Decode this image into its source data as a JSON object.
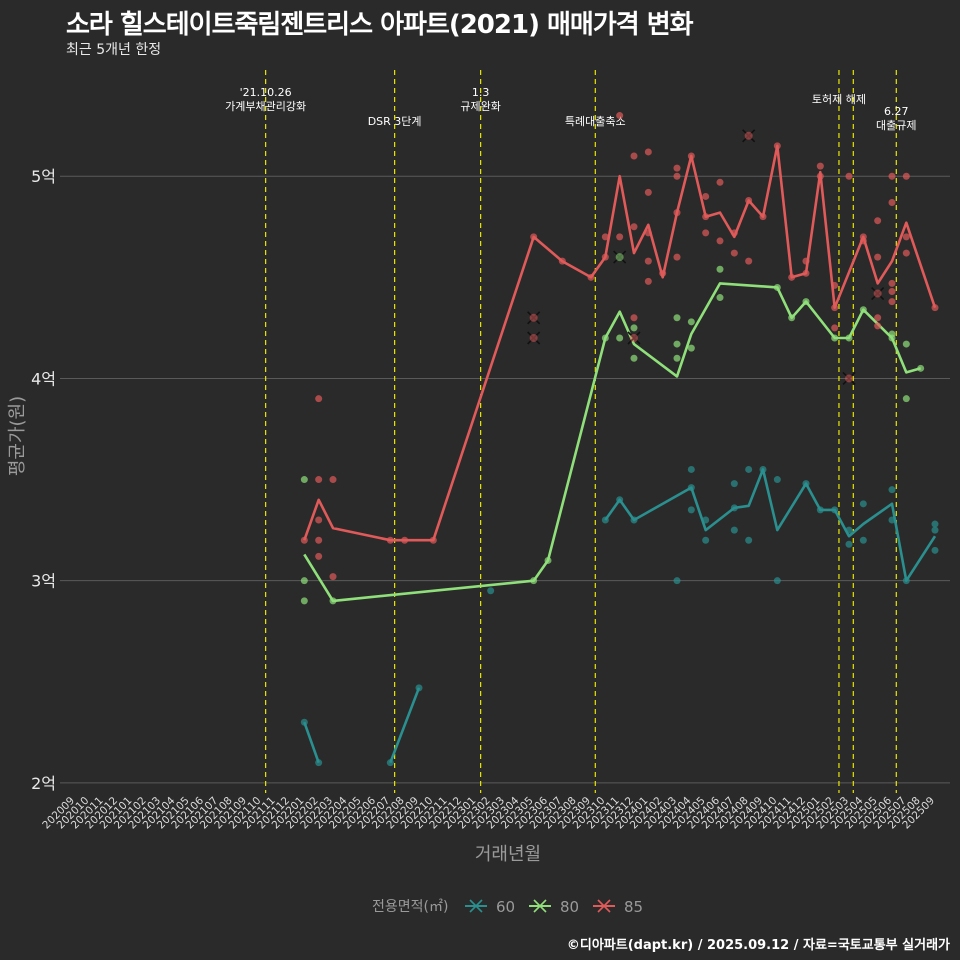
{
  "title": "소라 힐스테이트죽림젠트리스 아파트(2021) 매매가격 변화",
  "subtitle": "최근 5개년 한정",
  "caption": "©디아파트(dapt.kr) / 2025.09.12 / 자료=국토교통부 실거래가",
  "colors": {
    "background": "#2b2a2a",
    "grid": "#5a5a5a",
    "event_line": "#e8e800",
    "s60": "#2a8f8f",
    "s80": "#8fe07a",
    "s85": "#e05a5a"
  },
  "chart_data": {
    "type": "line",
    "xlabel": "거래년월",
    "ylabel": "평균가(원)",
    "x_categories": [
      "202009",
      "202010",
      "202011",
      "202012",
      "202101",
      "202102",
      "202103",
      "202104",
      "202105",
      "202106",
      "202107",
      "202108",
      "202109",
      "202110",
      "202111",
      "202112",
      "202201",
      "202202",
      "202203",
      "202204",
      "202205",
      "202206",
      "202207",
      "202208",
      "202209",
      "202210",
      "202211",
      "202212",
      "202301",
      "202302",
      "202303",
      "202304",
      "202305",
      "202306",
      "202307",
      "202308",
      "202309",
      "202310",
      "202311",
      "202312",
      "202401",
      "202402",
      "202403",
      "202404",
      "202405",
      "202406",
      "202407",
      "202408",
      "202409",
      "202410",
      "202411",
      "202412",
      "202501",
      "202502",
      "202503",
      "202504",
      "202505",
      "202506",
      "202507",
      "202508",
      "202509"
    ],
    "y_ticks": [
      {
        "value": 2.0,
        "label": "2억"
      },
      {
        "value": 3.0,
        "label": "3억"
      },
      {
        "value": 4.0,
        "label": "4억"
      },
      {
        "value": 5.0,
        "label": "5억"
      }
    ],
    "ylim": [
      1.95,
      5.55
    ],
    "legend": {
      "title": "전용면적(㎡)",
      "position": "bottom"
    },
    "events": [
      {
        "x": 13.3,
        "label": "'21.10.26\n가계부채관리강화",
        "row": 0
      },
      {
        "x": 22.3,
        "label": "DSR 3단계",
        "row": 1
      },
      {
        "x": 28.3,
        "label": "1.3\n규제완화",
        "row": 0
      },
      {
        "x": 36.3,
        "label": "특례대출축소",
        "row": 1
      },
      {
        "x": 53.3,
        "label": "토허제 해제",
        "row": 2
      },
      {
        "x": 54.3,
        "label": "",
        "row": 2
      },
      {
        "x": 57.3,
        "label": "6.27\n대출규제",
        "row": 3
      }
    ],
    "series": [
      {
        "name": "60",
        "line": [
          [
            16,
            2.3
          ],
          [
            17,
            2.1
          ],
          null,
          [
            22,
            2.1
          ],
          [
            24,
            2.47
          ],
          null,
          [
            37,
            3.3
          ],
          [
            38,
            3.4
          ],
          [
            39,
            3.3
          ],
          [
            43,
            3.46
          ],
          [
            44,
            3.25
          ],
          [
            46,
            3.36
          ],
          [
            47,
            3.37
          ],
          [
            48,
            3.55
          ],
          [
            49,
            3.25
          ],
          [
            51,
            3.48
          ],
          [
            52,
            3.35
          ],
          [
            53,
            3.35
          ],
          [
            54,
            3.22
          ],
          [
            55,
            3.28
          ],
          [
            57,
            3.38
          ],
          [
            58,
            3.0
          ],
          [
            60,
            3.22
          ]
        ],
        "points": [
          [
            16,
            2.3
          ],
          [
            17,
            2.1
          ],
          [
            22,
            2.1
          ],
          [
            24,
            2.47
          ],
          [
            29,
            2.95
          ],
          [
            37,
            3.3
          ],
          [
            38,
            3.4
          ],
          [
            39,
            3.3
          ],
          [
            42,
            3.0
          ],
          [
            43,
            3.46
          ],
          [
            43,
            3.35
          ],
          [
            43,
            3.55
          ],
          [
            44,
            3.3
          ],
          [
            44,
            3.2
          ],
          [
            46,
            3.36
          ],
          [
            46,
            3.25
          ],
          [
            46,
            3.48
          ],
          [
            47,
            3.55
          ],
          [
            47,
            3.2
          ],
          [
            48,
            3.55
          ],
          [
            49,
            3.5
          ],
          [
            49,
            3.0
          ],
          [
            51,
            3.48
          ],
          [
            52,
            3.35
          ],
          [
            53,
            3.35
          ],
          [
            54,
            3.25
          ],
          [
            54,
            3.18
          ],
          [
            55,
            3.2
          ],
          [
            55,
            3.38
          ],
          [
            57,
            3.45
          ],
          [
            57,
            3.3
          ],
          [
            58,
            3.0
          ],
          [
            60,
            3.28
          ],
          [
            60,
            3.15
          ],
          [
            60,
            3.25
          ]
        ],
        "cross": []
      },
      {
        "name": "80",
        "line": [
          [
            16,
            3.13
          ],
          [
            18,
            2.9
          ],
          [
            32,
            3.0
          ],
          [
            33,
            3.1
          ],
          [
            37,
            4.2
          ],
          [
            38,
            4.33
          ],
          [
            39,
            4.17
          ],
          [
            42,
            4.01
          ],
          [
            43,
            4.22
          ],
          [
            45,
            4.47
          ],
          [
            49,
            4.45
          ],
          [
            50,
            4.3
          ],
          [
            51,
            4.38
          ],
          [
            53,
            4.2
          ],
          [
            54,
            4.2
          ],
          [
            55,
            4.34
          ],
          [
            57,
            4.2
          ],
          [
            58,
            4.03
          ],
          [
            59,
            4.05
          ]
        ],
        "points": [
          [
            16,
            3.5
          ],
          [
            16,
            3.0
          ],
          [
            16,
            2.9
          ],
          [
            18,
            2.9
          ],
          [
            32,
            3.0
          ],
          [
            33,
            3.1
          ],
          [
            37,
            4.2
          ],
          [
            38,
            4.2
          ],
          [
            39,
            4.25
          ],
          [
            39,
            4.1
          ],
          [
            42,
            4.3
          ],
          [
            42,
            4.17
          ],
          [
            42,
            4.1
          ],
          [
            43,
            4.28
          ],
          [
            43,
            4.15
          ],
          [
            45,
            4.54
          ],
          [
            45,
            4.4
          ],
          [
            49,
            4.45
          ],
          [
            50,
            4.3
          ],
          [
            51,
            4.38
          ],
          [
            53,
            4.2
          ],
          [
            54,
            4.2
          ],
          [
            55,
            4.34
          ],
          [
            57,
            4.22
          ],
          [
            57,
            4.2
          ],
          [
            58,
            4.17
          ],
          [
            58,
            3.9
          ],
          [
            59,
            4.05
          ]
        ],
        "cross": [
          [
            38,
            4.6
          ]
        ]
      },
      {
        "name": "85",
        "line": [
          [
            16,
            3.2
          ],
          [
            17,
            3.4
          ],
          [
            18,
            3.26
          ],
          [
            22,
            3.2
          ],
          [
            23,
            3.2
          ],
          [
            25,
            3.2
          ],
          [
            32,
            4.7
          ],
          [
            34,
            4.58
          ],
          [
            36,
            4.5
          ],
          [
            37,
            4.6
          ],
          [
            38,
            5.0
          ],
          [
            39,
            4.62
          ],
          [
            40,
            4.76
          ],
          [
            41,
            4.5
          ],
          [
            42,
            4.82
          ],
          [
            43,
            5.1
          ],
          [
            44,
            4.8
          ],
          [
            45,
            4.82
          ],
          [
            46,
            4.7
          ],
          [
            47,
            4.88
          ],
          [
            48,
            4.8
          ],
          [
            49,
            5.15
          ],
          [
            50,
            4.5
          ],
          [
            51,
            4.52
          ],
          [
            52,
            5.02
          ],
          [
            53,
            4.35
          ],
          [
            55,
            4.7
          ],
          [
            56,
            4.47
          ],
          [
            57,
            4.58
          ],
          [
            58,
            4.77
          ],
          [
            60,
            4.35
          ]
        ],
        "points": [
          [
            16,
            3.2
          ],
          [
            17,
            3.9
          ],
          [
            17,
            3.5
          ],
          [
            17,
            3.3
          ],
          [
            17,
            3.2
          ],
          [
            17,
            3.12
          ],
          [
            18,
            3.5
          ],
          [
            18,
            3.02
          ],
          [
            22,
            3.2
          ],
          [
            23,
            3.2
          ],
          [
            25,
            3.2
          ],
          [
            32,
            4.7
          ],
          [
            34,
            4.58
          ],
          [
            36,
            4.5
          ],
          [
            37,
            4.6
          ],
          [
            37,
            4.7
          ],
          [
            38,
            4.7
          ],
          [
            38,
            5.3
          ],
          [
            39,
            4.75
          ],
          [
            39,
            5.1
          ],
          [
            39,
            4.3
          ],
          [
            40,
            5.12
          ],
          [
            40,
            4.92
          ],
          [
            40,
            4.72
          ],
          [
            40,
            4.58
          ],
          [
            40,
            4.48
          ],
          [
            41,
            4.52
          ],
          [
            42,
            5.04
          ],
          [
            42,
            5.0
          ],
          [
            42,
            4.6
          ],
          [
            42,
            4.82
          ],
          [
            43,
            5.1
          ],
          [
            44,
            4.9
          ],
          [
            44,
            4.8
          ],
          [
            44,
            4.72
          ],
          [
            45,
            4.97
          ],
          [
            45,
            4.68
          ],
          [
            46,
            4.72
          ],
          [
            46,
            4.62
          ],
          [
            47,
            4.88
          ],
          [
            47,
            4.58
          ],
          [
            48,
            4.8
          ],
          [
            49,
            5.15
          ],
          [
            50,
            4.5
          ],
          [
            51,
            4.58
          ],
          [
            51,
            4.52
          ],
          [
            52,
            5.05
          ],
          [
            52,
            5.0
          ],
          [
            53,
            4.46
          ],
          [
            53,
            4.35
          ],
          [
            53,
            4.25
          ],
          [
            54,
            5.0
          ],
          [
            55,
            4.7
          ],
          [
            55,
            4.68
          ],
          [
            56,
            4.78
          ],
          [
            56,
            4.6
          ],
          [
            56,
            4.3
          ],
          [
            56,
            4.26
          ],
          [
            57,
            5.0
          ],
          [
            57,
            4.87
          ],
          [
            57,
            4.47
          ],
          [
            57,
            4.43
          ],
          [
            57,
            4.38
          ],
          [
            58,
            5.0
          ],
          [
            58,
            4.7
          ],
          [
            58,
            4.62
          ],
          [
            60,
            4.35
          ]
        ],
        "cross": [
          [
            32,
            4.3
          ],
          [
            32,
            4.2
          ],
          [
            39,
            4.2
          ],
          [
            47,
            5.2
          ],
          [
            54,
            4.0
          ],
          [
            56,
            4.42
          ]
        ]
      }
    ]
  }
}
